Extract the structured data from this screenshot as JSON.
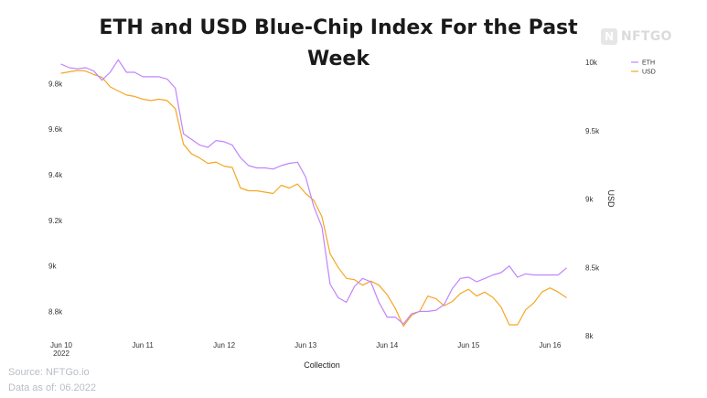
{
  "logo": {
    "mark": "N",
    "text": "NFTGO"
  },
  "footer": {
    "source": "Source: NFTGo.io",
    "data_as_of": "Data as of: 06.2022"
  },
  "chart_data": {
    "type": "line",
    "title_lines": [
      "ETH and USD Blue-Chip Index For the Past",
      "Week"
    ],
    "xlabel": "Collection",
    "ylabel_left": "",
    "ylabel_right": "USD",
    "x_ticks": [
      {
        "label": "Jun 10",
        "sub": "2022",
        "day": 0
      },
      {
        "label": "Jun 11",
        "sub": "",
        "day": 1
      },
      {
        "label": "Jun 12",
        "sub": "",
        "day": 2
      },
      {
        "label": "Jun 13",
        "sub": "",
        "day": 3
      },
      {
        "label": "Jun 14",
        "sub": "",
        "day": 4
      },
      {
        "label": "Jun 15",
        "sub": "",
        "day": 5
      },
      {
        "label": "Jun 16",
        "sub": "",
        "day": 6
      }
    ],
    "xlim": [
      0,
      6.4
    ],
    "y_left_ticks": [
      {
        "label": "8.8k",
        "value": 8800
      },
      {
        "label": "9k",
        "value": 9000
      },
      {
        "label": "9.2k",
        "value": 9200
      },
      {
        "label": "9.4k",
        "value": 9400
      },
      {
        "label": "9.6k",
        "value": 9600
      },
      {
        "label": "9.8k",
        "value": 9800
      }
    ],
    "y_left_lim": [
      8693,
      9894
    ],
    "y_right_ticks": [
      {
        "label": "8k",
        "value": 8000
      },
      {
        "label": "8.5k",
        "value": 8500
      },
      {
        "label": "9k",
        "value": 9000
      },
      {
        "label": "9.5k",
        "value": 9500
      },
      {
        "label": "10k",
        "value": 10000
      }
    ],
    "y_right_lim": [
      8000,
      10000
    ],
    "legend": {
      "position": "top-right"
    },
    "series": [
      {
        "name": "ETH",
        "axis": "left",
        "color": "#c084fc",
        "x": [
          0,
          0.1,
          0.2,
          0.3,
          0.4,
          0.5,
          0.6,
          0.7,
          0.8,
          0.9,
          1.0,
          1.1,
          1.2,
          1.3,
          1.4,
          1.5,
          1.6,
          1.7,
          1.8,
          1.9,
          2.0,
          2.1,
          2.2,
          2.3,
          2.4,
          2.5,
          2.6,
          2.7,
          2.8,
          2.9,
          3.0,
          3.1,
          3.2,
          3.3,
          3.4,
          3.5,
          3.6,
          3.7,
          3.8,
          3.9,
          4.0,
          4.1,
          4.2,
          4.3,
          4.4,
          4.5,
          4.6,
          4.7,
          4.8,
          4.9,
          5.0,
          5.1,
          5.2,
          5.3,
          5.4,
          5.5,
          5.6,
          5.7,
          5.8,
          5.9,
          6.0,
          6.1,
          6.2
        ],
        "values": [
          9885,
          9870,
          9865,
          9870,
          9855,
          9815,
          9850,
          9905,
          9850,
          9850,
          9830,
          9830,
          9830,
          9820,
          9780,
          9580,
          9555,
          9530,
          9520,
          9550,
          9545,
          9530,
          9475,
          9440,
          9430,
          9430,
          9425,
          9440,
          9450,
          9455,
          9390,
          9260,
          9170,
          8920,
          8860,
          8840,
          8910,
          8945,
          8930,
          8840,
          8775,
          8775,
          8745,
          8790,
          8800,
          8800,
          8805,
          8830,
          8900,
          8945,
          8950,
          8930,
          8945,
          8960,
          8970,
          9000,
          8950,
          8965,
          8960,
          8960,
          8960,
          8960,
          8990
        ]
      },
      {
        "name": "USD",
        "axis": "right",
        "color": "#f5a623",
        "x": [
          0,
          0.1,
          0.2,
          0.3,
          0.4,
          0.5,
          0.6,
          0.7,
          0.8,
          0.9,
          1.0,
          1.1,
          1.2,
          1.3,
          1.4,
          1.5,
          1.6,
          1.7,
          1.8,
          1.9,
          2.0,
          2.1,
          2.2,
          2.3,
          2.4,
          2.5,
          2.6,
          2.7,
          2.8,
          2.9,
          3.0,
          3.1,
          3.2,
          3.3,
          3.4,
          3.5,
          3.6,
          3.7,
          3.8,
          3.9,
          4.0,
          4.1,
          4.2,
          4.3,
          4.4,
          4.5,
          4.6,
          4.7,
          4.8,
          4.9,
          5.0,
          5.1,
          5.2,
          5.3,
          5.4,
          5.5,
          5.6,
          5.7,
          5.8,
          5.9,
          6.0,
          6.1,
          6.2
        ],
        "values": [
          9920,
          9930,
          9940,
          9935,
          9910,
          9890,
          9820,
          9790,
          9760,
          9750,
          9730,
          9720,
          9730,
          9720,
          9660,
          9400,
          9330,
          9300,
          9260,
          9270,
          9240,
          9230,
          9080,
          9060,
          9060,
          9050,
          9040,
          9100,
          9080,
          9110,
          9040,
          8990,
          8870,
          8600,
          8500,
          8420,
          8410,
          8370,
          8400,
          8370,
          8300,
          8200,
          8070,
          8150,
          8180,
          8290,
          8270,
          8220,
          8250,
          8310,
          8340,
          8290,
          8320,
          8280,
          8210,
          8080,
          8080,
          8190,
          8240,
          8320,
          8350,
          8320,
          8280
        ]
      }
    ]
  }
}
